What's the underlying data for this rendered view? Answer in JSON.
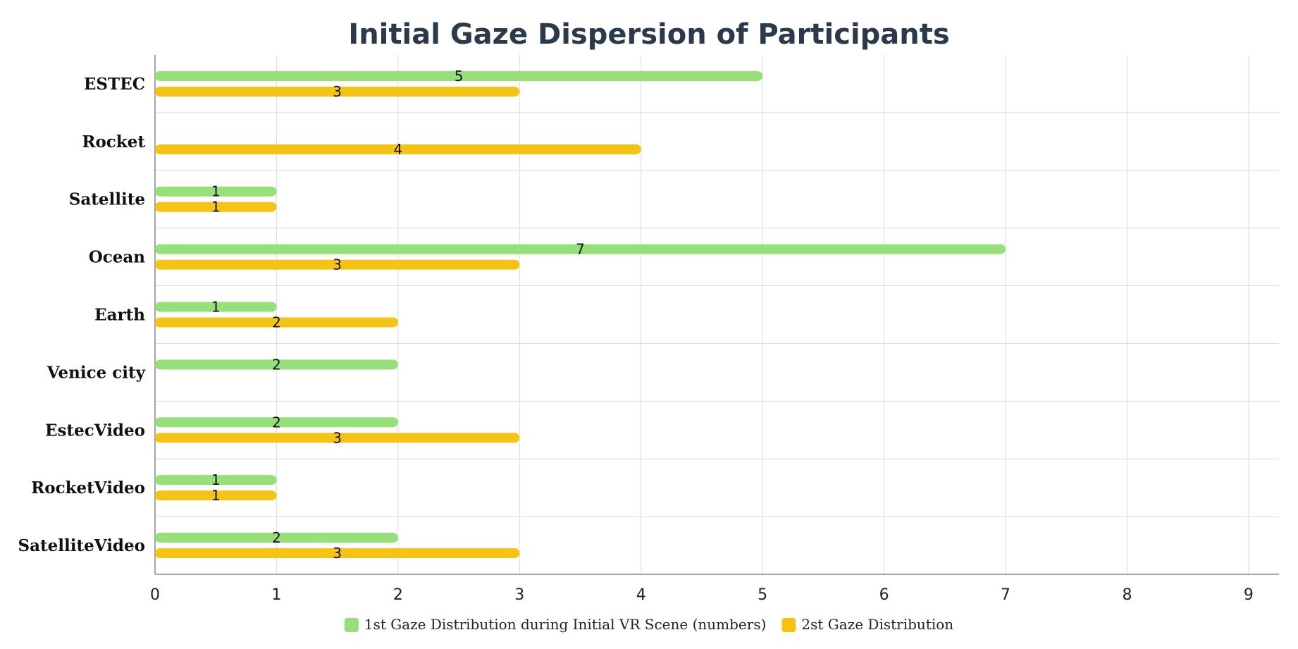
{
  "chart_data": {
    "type": "bar",
    "orientation": "horizontal",
    "title": "Initial Gaze Dispersion of Participants",
    "xlabel": "",
    "ylabel": "",
    "categories": [
      "ESTEC",
      "Rocket",
      "Satellite",
      "Ocean",
      "Earth",
      "Venice city",
      "EstecVideo",
      "RocketVideo",
      "SatelliteVideo"
    ],
    "series": [
      {
        "name": "1st Gaze Distribution during Initial VR Scene (numbers)",
        "color": "#96e07a",
        "values": [
          5,
          null,
          1,
          7,
          1,
          2,
          2,
          1,
          2
        ]
      },
      {
        "name": "2st Gaze Distribution",
        "color": "#f5c313",
        "values": [
          3,
          4,
          1,
          3,
          2,
          null,
          3,
          1,
          3
        ]
      }
    ],
    "xlim": [
      0,
      9.25
    ],
    "x_ticks": [
      "0",
      "1",
      "2",
      "3",
      "4",
      "5",
      "6",
      "7",
      "8",
      "9"
    ],
    "grid": true,
    "data_labels": true,
    "legend_position": "bottom"
  }
}
